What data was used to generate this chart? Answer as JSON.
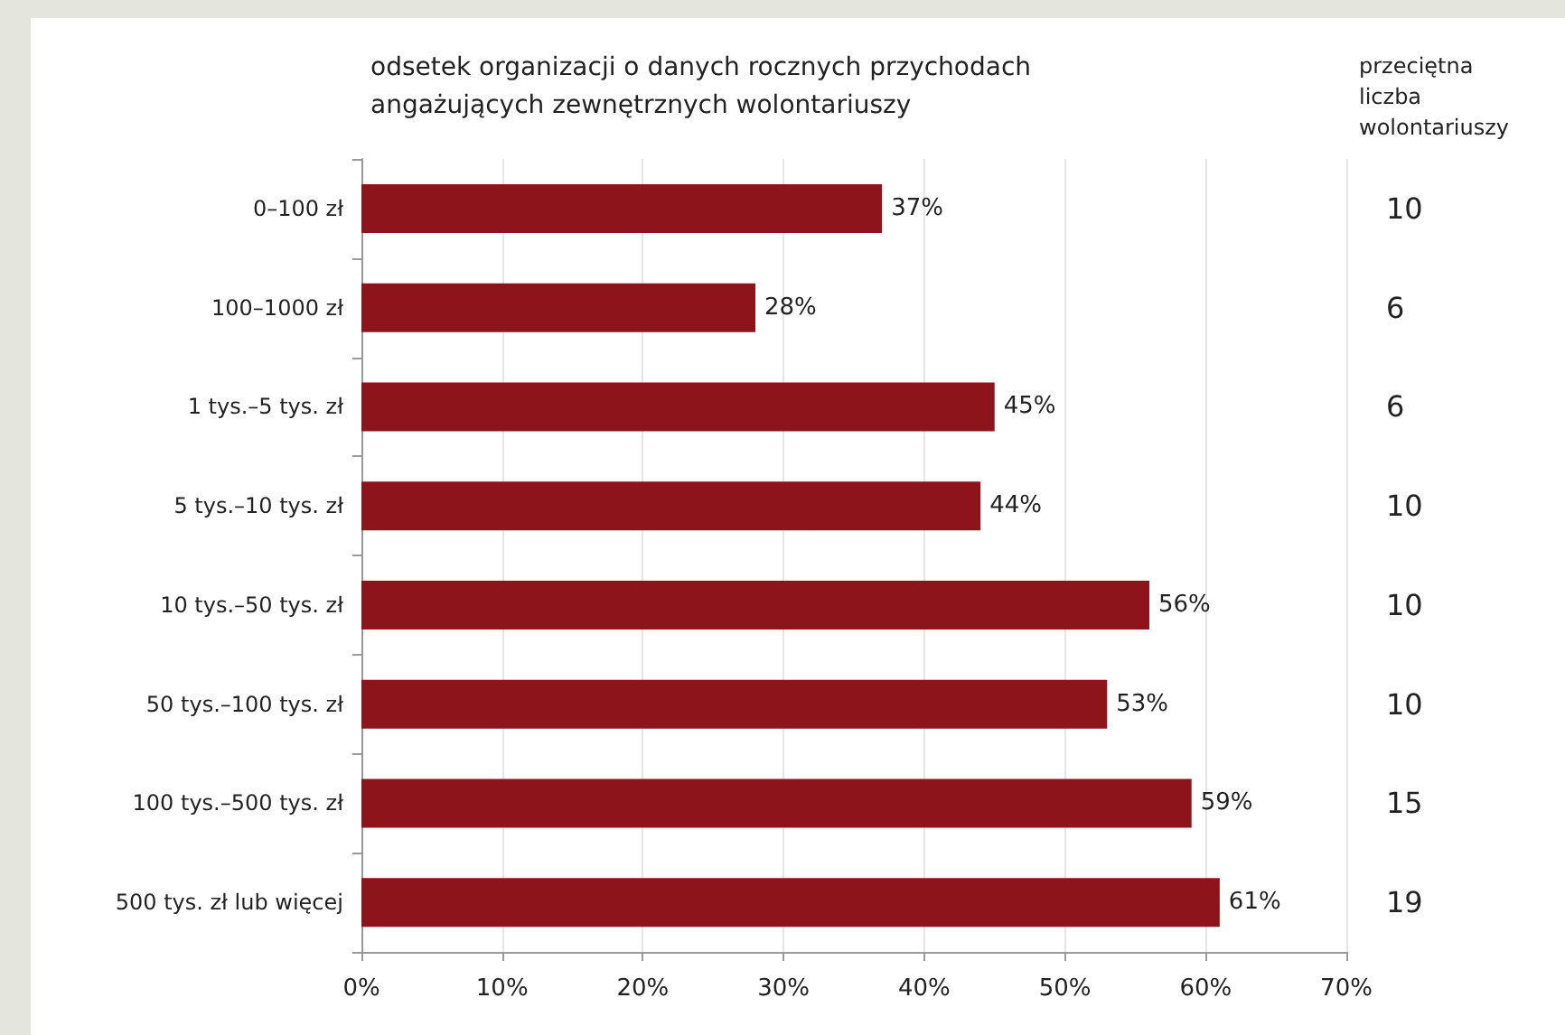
{
  "chart_data": {
    "type": "bar",
    "orientation": "horizontal",
    "title": "odsetek organizacji o danych rocznych przychodach angażujących zewnętrznych wolontariuszy",
    "categories": [
      "0–100 zł",
      "100–1000 zł",
      "1 tys.–5 tys. zł",
      "5 tys.–10 tys. zł",
      "10 tys.–50 tys. zł",
      "50 tys.–100 tys. zł",
      "100 tys.–500 tys. zł",
      "500 tys. zł lub więcej"
    ],
    "values": [
      37,
      28,
      45,
      44,
      56,
      53,
      59,
      61
    ],
    "value_labels": [
      "37%",
      "28%",
      "45%",
      "44%",
      "56%",
      "53%",
      "59%",
      "61%"
    ],
    "color": "#8e141c",
    "xlim": [
      0,
      70
    ],
    "xticks": [
      {
        "value": 0,
        "label": "0%"
      },
      {
        "value": 10,
        "label": "10%"
      },
      {
        "value": 20,
        "label": "20%"
      },
      {
        "value": 30,
        "label": "30%"
      },
      {
        "value": 40,
        "label": "40%"
      },
      {
        "value": 50,
        "label": "50%"
      },
      {
        "value": 60,
        "label": "60%"
      },
      {
        "value": 70,
        "label": "70%"
      }
    ],
    "grid": "x",
    "annotations": [
      "przeciętna liczba wolontariuszy",
      "10",
      "6",
      "6",
      "10",
      "10",
      "10",
      "15",
      "19"
    ]
  }
}
